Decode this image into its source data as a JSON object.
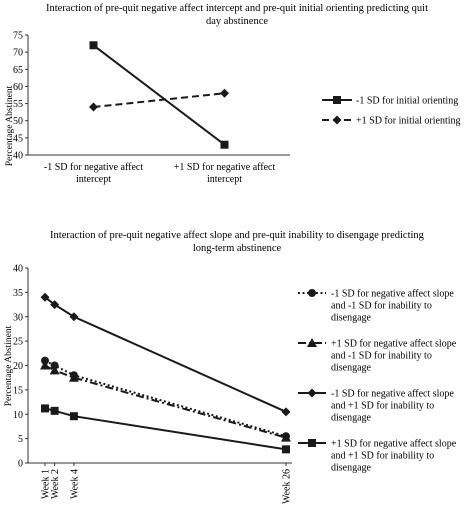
{
  "chart_data": [
    {
      "type": "line",
      "title": "Interaction of pre-quit negative affect intercept and pre-quit initial orienting predicting quit day abstinence",
      "title_lines": [
        "Interaction of pre-quit negative affect intercept and pre-quit initial orienting predicting quit",
        "day abstinence"
      ],
      "ylabel": "Percentage Abstinent",
      "ylim": [
        40,
        75
      ],
      "yticks": [
        40,
        45,
        50,
        55,
        60,
        65,
        70,
        75
      ],
      "categories": [
        "-1 SD for negative affect intercept",
        "+1 SD for negative affect intercept"
      ],
      "category_lines": [
        [
          "-1 SD for negative affect",
          "intercept"
        ],
        [
          "+1 SD for negative affect",
          "intercept"
        ]
      ],
      "legend_position": "right",
      "grid": false,
      "series": [
        {
          "name": "-1 SD for initial orienting",
          "values": [
            72,
            43
          ],
          "marker": "square",
          "dash": "solid",
          "color": "#1a1a1a"
        },
        {
          "name": "+1 SD for initial orienting",
          "values": [
            54,
            58
          ],
          "marker": "diamond",
          "dash": "dashed",
          "color": "#1a1a1a"
        }
      ]
    },
    {
      "type": "line",
      "title": "Interaction of pre-quit negative affect slope and pre-quit inability to disengage predicting long-term abstinence",
      "title_lines": [
        "Interaction of pre-quit negative affect slope and pre-quit inability to disengage predicting",
        "long-term abstinence"
      ],
      "ylabel": "Percentage Abstinent",
      "ylim": [
        0,
        40
      ],
      "yticks": [
        0,
        5,
        10,
        15,
        20,
        25,
        30,
        35,
        40
      ],
      "x": [
        1,
        2,
        4,
        26
      ],
      "xticklabels": [
        "Week 1",
        "Week 2",
        "Week 4",
        "Week 26"
      ],
      "legend_position": "right",
      "grid": false,
      "series": [
        {
          "name": "-1 SD for negative affect slope and -1 SD for inability to disengage",
          "legend_lines": [
            "-1 SD for negative affect slope",
            "and -1 SD for inability to",
            "disengage"
          ],
          "values": [
            21,
            20,
            18,
            5.5
          ],
          "marker": "circle",
          "dash": "dotted",
          "color": "#1a1a1a"
        },
        {
          "name": "+1 SD for negative affect slope and -1 SD for inability to disengage",
          "legend_lines": [
            "+1 SD for negative affect slope",
            "and -1 SD for inability to",
            "disengage"
          ],
          "values": [
            20,
            19,
            17.5,
            5.2
          ],
          "marker": "triangle",
          "dash": "dashdot",
          "color": "#1a1a1a"
        },
        {
          "name": "-1 SD for negative affect slope and +1 SD for inability to disengage",
          "legend_lines": [
            "-1 SD for negative affect slope",
            "and +1 SD for inability to",
            "disengage"
          ],
          "values": [
            34,
            32.5,
            30,
            10.5
          ],
          "marker": "diamond",
          "dash": "solid",
          "color": "#1a1a1a"
        },
        {
          "name": "+1 SD for negative affect slope and +1 SD for inability to disengage",
          "legend_lines": [
            "+1 SD for negative affect slope",
            "and +1 SD for inability to",
            "disengage"
          ],
          "values": [
            11.2,
            10.7,
            9.6,
            2.8
          ],
          "marker": "square",
          "dash": "solid",
          "color": "#1a1a1a"
        }
      ]
    }
  ]
}
